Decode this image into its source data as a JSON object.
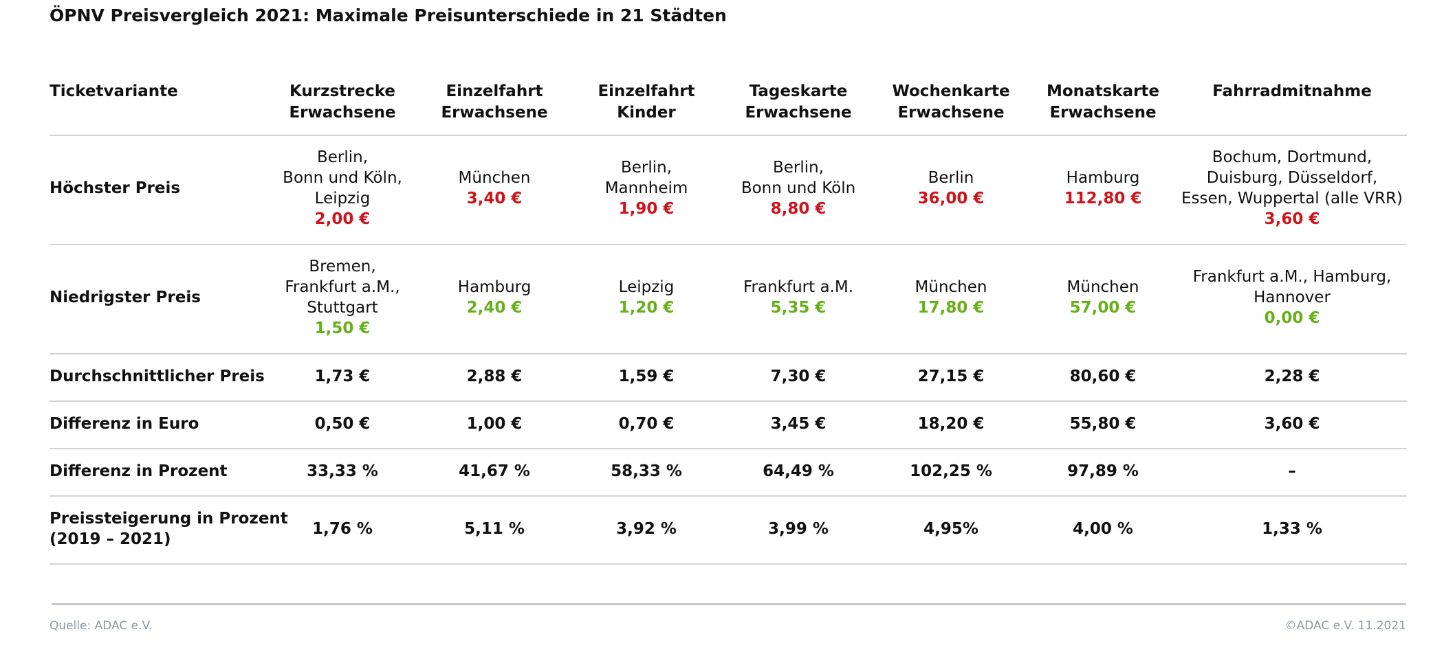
{
  "title": "ÖPNV Preisvergleich 2021: Maximale Preisunterschiede in 21 Städten",
  "colors": {
    "highest": "#d0131b",
    "lowest": "#67b01a"
  },
  "headers": [
    [
      "Ticketvariante"
    ],
    [
      "Kurzstrecke",
      "Erwachsene"
    ],
    [
      "Einzelfahrt",
      "Erwachsene"
    ],
    [
      "Einzelfahrt",
      "Kinder"
    ],
    [
      "Tageskarte",
      "Erwachsene"
    ],
    [
      "Wochenkarte",
      "Erwachsene"
    ],
    [
      "Monatskarte",
      "Erwachsene"
    ],
    [
      "Fahrradmitnahme"
    ]
  ],
  "highest": {
    "label": "Höchster Preis",
    "cells": [
      {
        "places": [
          "Berlin,",
          "Bonn und Köln,",
          "Leipzig"
        ],
        "price": "2,00 €"
      },
      {
        "places": [
          "München"
        ],
        "price": "3,40 €"
      },
      {
        "places": [
          "Berlin,",
          "Mannheim"
        ],
        "price": "1,90 €"
      },
      {
        "places": [
          "Berlin,",
          "Bonn und Köln"
        ],
        "price": "8,80 €"
      },
      {
        "places": [
          "Berlin"
        ],
        "price": "36,00 €"
      },
      {
        "places": [
          "Hamburg"
        ],
        "price": "112,80 €"
      },
      {
        "places": [
          "Bochum, Dortmund,",
          "Duisburg, Düsseldorf,",
          "Essen, Wuppertal (alle VRR)"
        ],
        "price": "3,60 €"
      }
    ]
  },
  "lowest": {
    "label": "Niedrigster Preis",
    "cells": [
      {
        "places": [
          "Bremen,",
          "Frankfurt a.M.,",
          "Stuttgart"
        ],
        "price": "1,50 €"
      },
      {
        "places": [
          "Hamburg"
        ],
        "price": "2,40 €"
      },
      {
        "places": [
          "Leipzig"
        ],
        "price": "1,20 €"
      },
      {
        "places": [
          "Frankfurt a.M."
        ],
        "price": "5,35 €"
      },
      {
        "places": [
          "München"
        ],
        "price": "17,80 €"
      },
      {
        "places": [
          "München"
        ],
        "price": "57,00 €"
      },
      {
        "places": [
          "Frankfurt a.M., Hamburg,",
          "Hannover"
        ],
        "price": "0,00 €"
      }
    ]
  },
  "simple_rows": [
    {
      "label": [
        "Durchschnittlicher Preis"
      ],
      "values": [
        "1,73 €",
        "2,88 €",
        "1,59 €",
        "7,30 €",
        "27,15 €",
        "80,60 €",
        "2,28 €"
      ]
    },
    {
      "label": [
        "Differenz in Euro"
      ],
      "values": [
        "0,50 €",
        "1,00 €",
        "0,70 €",
        "3,45 €",
        "18,20 €",
        "55,80 €",
        "3,60 €"
      ]
    },
    {
      "label": [
        "Differenz in Prozent"
      ],
      "values": [
        "33,33 %",
        "41,67 %",
        "58,33 %",
        "64,49 %",
        "102,25 %",
        "97,89 %",
        "–"
      ]
    },
    {
      "label": [
        "Preissteigerung in Prozent",
        "(2019 – 2021)"
      ],
      "values": [
        "1,76 %",
        "5,11 %",
        "3,92 %",
        "3,99 %",
        "4,95%",
        "4,00 %",
        "1,33 %"
      ]
    }
  ],
  "footer": {
    "source": "Quelle: ADAC e.V.",
    "copyright": "©ADAC e.V. 11.2021"
  }
}
